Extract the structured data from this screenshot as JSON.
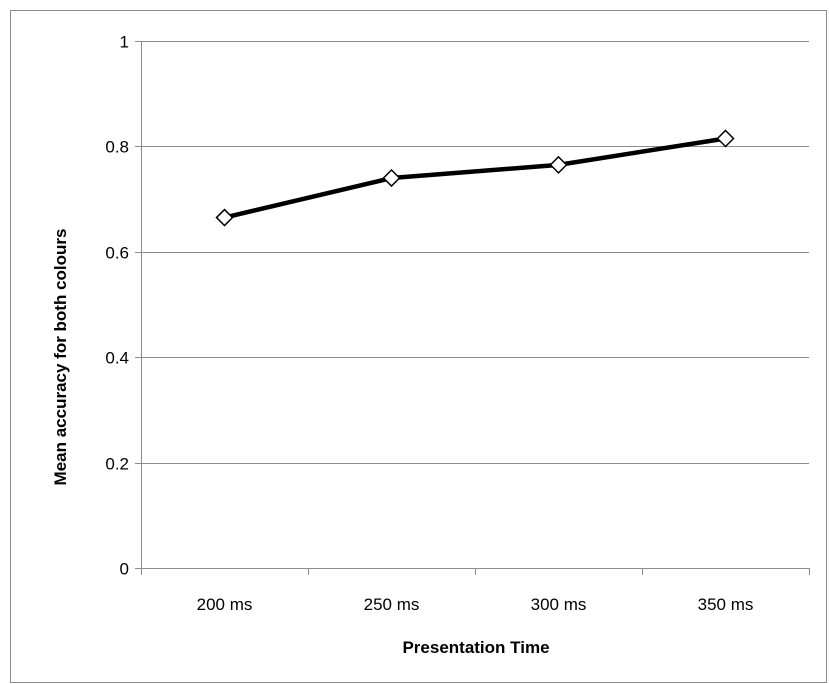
{
  "chart_data": {
    "type": "line",
    "title": "",
    "xlabel": "Presentation Time",
    "ylabel": "Mean accuracy for both colours",
    "categories": [
      "200 ms",
      "250 ms",
      "300 ms",
      "350 ms"
    ],
    "series": [
      {
        "values": [
          0.665,
          0.74,
          0.765,
          0.815
        ]
      }
    ],
    "ylim": [
      0,
      1
    ],
    "yticks": [
      0,
      0.2,
      0.4,
      0.6,
      0.8,
      1
    ],
    "ytick_labels": [
      "0",
      "0.2",
      "0.4",
      "0.6",
      "0.8",
      "1"
    ],
    "grid": true,
    "legend": "none",
    "marker": "diamond",
    "colors": {
      "line": "#000000",
      "marker_fill": "#ffffff",
      "grid": "#8c8c8c",
      "border": "#8c8c8c"
    }
  }
}
